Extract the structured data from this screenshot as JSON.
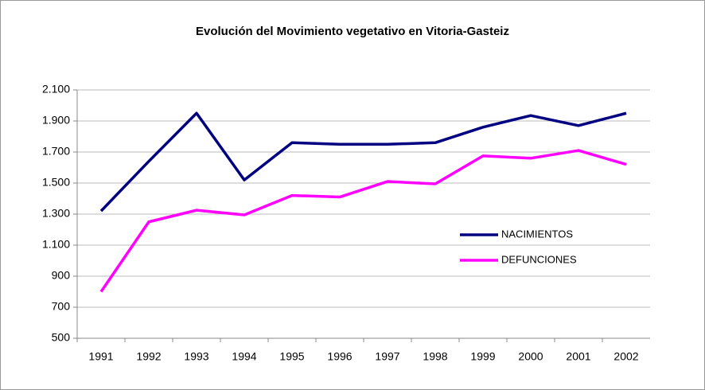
{
  "chart_data": {
    "type": "line",
    "title": "Evolución del Movimiento vegetativo en Vitoria-Gasteiz",
    "categories": [
      "1991",
      "1992",
      "1993",
      "1994",
      "1995",
      "1996",
      "1997",
      "1998",
      "1999",
      "2000",
      "2001",
      "2002"
    ],
    "series": [
      {
        "name": "NACIMIENTOS",
        "color": "#000080",
        "values": [
          1320,
          1640,
          1950,
          1520,
          1760,
          1750,
          1750,
          1760,
          1860,
          1935,
          1870,
          1950
        ]
      },
      {
        "name": "DEFUNCIONES",
        "color": "#ff00ff",
        "values": [
          800,
          1250,
          1325,
          1295,
          1420,
          1410,
          1510,
          1495,
          1675,
          1660,
          1710,
          1620
        ]
      }
    ],
    "ylim": [
      500,
      2100
    ],
    "yticks": [
      500,
      700,
      900,
      {
        "value": 1100,
        "label": "1.100"
      },
      {
        "value": 1300,
        "label": "1.300"
      },
      {
        "value": 1500,
        "label": "1.500"
      },
      {
        "value": 1700,
        "label": "1.700"
      },
      {
        "value": 1900,
        "label": "1.900"
      },
      {
        "value": 2100,
        "label": "2.100"
      }
    ],
    "grid": true
  }
}
